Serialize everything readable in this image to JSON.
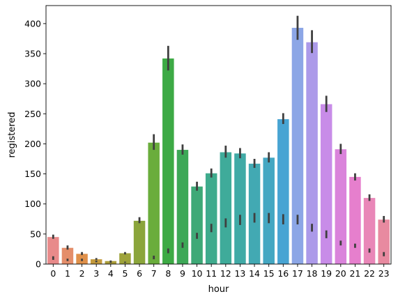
{
  "chart_data": {
    "type": "bar",
    "title": "",
    "xlabel": "hour",
    "ylabel": "registered",
    "ylim": [
      0,
      430
    ],
    "yticks": [
      0,
      50,
      100,
      150,
      200,
      250,
      300,
      350,
      400
    ],
    "grid": false,
    "legend": "none",
    "categories": [
      "0",
      "1",
      "2",
      "3",
      "4",
      "5",
      "6",
      "7",
      "8",
      "9",
      "10",
      "11",
      "12",
      "13",
      "14",
      "15",
      "16",
      "17",
      "18",
      "19",
      "20",
      "21",
      "22",
      "23"
    ],
    "series": [
      {
        "values": [
          45,
          27,
          17,
          8,
          5,
          18,
          72,
          202,
          342,
          190,
          129,
          151,
          186,
          184,
          167,
          177,
          241,
          393,
          369,
          266,
          191,
          145,
          110,
          74
        ],
        "error_low": [
          42,
          24,
          15,
          7,
          4,
          16,
          68,
          190,
          322,
          182,
          122,
          144,
          177,
          176,
          160,
          169,
          233,
          373,
          351,
          253,
          183,
          139,
          105,
          69
        ],
        "error_high": [
          49,
          31,
          20,
          10,
          6,
          20,
          78,
          216,
          363,
          199,
          137,
          159,
          197,
          193,
          175,
          186,
          251,
          413,
          389,
          280,
          200,
          151,
          116,
          80
        ],
        "second_marker_low": [
          7,
          5,
          5,
          3,
          2,
          2,
          0,
          8,
          18,
          27,
          42,
          53,
          61,
          65,
          69,
          68,
          66,
          66,
          54,
          43,
          31,
          27,
          19,
          13
        ],
        "second_marker_high": [
          13,
          9,
          9,
          6,
          4,
          4,
          0,
          14,
          26,
          36,
          52,
          67,
          76,
          82,
          85,
          85,
          83,
          82,
          67,
          56,
          39,
          34,
          26,
          20
        ]
      }
    ],
    "bar_colors": [
      "#e88a8a",
      "#e48e6a",
      "#df904a",
      "#c49a3c",
      "#ab9e3a",
      "#9ea33b",
      "#8ba53b",
      "#6aad3c",
      "#3daa45",
      "#3da857",
      "#3ea977",
      "#3fab8d",
      "#3fab9a",
      "#40aaa6",
      "#42a9b3",
      "#44a7c2",
      "#48a4d3",
      "#8ca6e6",
      "#ac9ae9",
      "#c88ce8",
      "#da83db",
      "#e67fcd",
      "#e987b8",
      "#e88aa0"
    ],
    "error_color": "#3f3f3f"
  }
}
